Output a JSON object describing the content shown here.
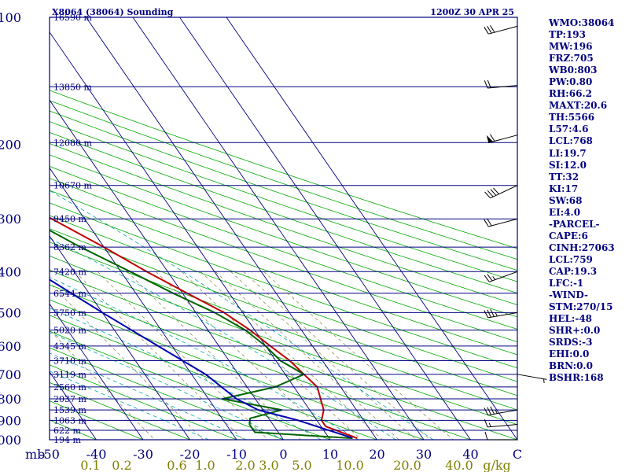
{
  "header": {
    "title": "X8064 (38064) Sounding",
    "time": "1200Z 30 APR 25"
  },
  "chart_data": {
    "type": "line",
    "subtype": "skew-t log-p",
    "pressure_axis": {
      "unit_label": "mb",
      "ticks": [
        100,
        200,
        300,
        400,
        500,
        600,
        700,
        800,
        900,
        1000
      ],
      "range": [
        100,
        1000
      ],
      "scale": "log"
    },
    "temperature_axis": {
      "ticks": [
        -50,
        -40,
        -30,
        -20,
        -10,
        0,
        10,
        20,
        30,
        40
      ],
      "end_label": "C",
      "range": [
        -50,
        50
      ]
    },
    "mixing_ratio_axis": {
      "labels": [
        "0.1",
        "0.2",
        "0.6",
        "1.0",
        "2.0",
        "3.0",
        "5.0",
        "10.0",
        "20.0",
        "40.0"
      ],
      "unit": "g/kg"
    },
    "height_labels": [
      {
        "p": 100,
        "label": "16590 m"
      },
      {
        "p": 146,
        "label": "13850 m"
      },
      {
        "p": 198,
        "label": "12080 m"
      },
      {
        "p": 250,
        "label": "10670 m"
      },
      {
        "p": 300,
        "label": "9450 m"
      },
      {
        "p": 350,
        "label": "8362 m"
      },
      {
        "p": 400,
        "label": "7420 m"
      },
      {
        "p": 450,
        "label": "6544 m"
      },
      {
        "p": 500,
        "label": "5750 m"
      },
      {
        "p": 550,
        "label": "5020 m"
      },
      {
        "p": 600,
        "label": "4345 m"
      },
      {
        "p": 650,
        "label": "3710 m"
      },
      {
        "p": 700,
        "label": "3119 m"
      },
      {
        "p": 750,
        "label": "2560 m"
      },
      {
        "p": 800,
        "label": "2037 m"
      },
      {
        "p": 850,
        "label": "1539 m"
      },
      {
        "p": 900,
        "label": "1063 m"
      },
      {
        "p": 950,
        "label": "622 m"
      },
      {
        "p": 1000,
        "label": "194 m"
      }
    ],
    "series": [
      {
        "data": [
          [
            992,
            16
          ],
          [
            930,
            11
          ],
          [
            900,
            11
          ],
          [
            850,
            13
          ],
          [
            750,
            15
          ],
          [
            700,
            14
          ],
          [
            650,
            13
          ],
          [
            600,
            11
          ],
          [
            550,
            9
          ],
          [
            500,
            6
          ],
          [
            450,
            1
          ],
          [
            400,
            -4.5
          ],
          [
            350,
            -10
          ],
          [
            300,
            -17
          ],
          [
            250,
            -25
          ],
          [
            200,
            -35
          ],
          [
            190,
            -36
          ],
          [
            150,
            -35
          ],
          [
            140,
            -38
          ],
          [
            120,
            -42
          ],
          [
            110,
            -44
          ],
          [
            100,
            -46
          ]
        ],
        "color": "#c00000"
      },
      {
        "data": [
          [
            992,
            15
          ],
          [
            960,
            -5
          ],
          [
            920,
            -5
          ],
          [
            890,
            -4
          ],
          [
            850,
            4
          ],
          [
            800,
            -7
          ],
          [
            750,
            6
          ],
          [
            700,
            14
          ],
          [
            650,
            11
          ],
          [
            600,
            10
          ],
          [
            550,
            8
          ],
          [
            500,
            4
          ],
          [
            450,
            -2
          ],
          [
            400,
            -8
          ],
          [
            350,
            -15
          ],
          [
            300,
            -22
          ],
          [
            250,
            -31
          ],
          [
            200,
            -40
          ],
          [
            180,
            -40
          ],
          [
            150,
            -37
          ],
          [
            120,
            -38
          ],
          [
            100,
            -42
          ]
        ],
        "color": "#006400"
      },
      {
        "data": [
          [
            990,
            15
          ],
          [
            900,
            6
          ],
          [
            850,
            -1
          ],
          [
            800,
            -4
          ],
          [
            700,
            -7
          ],
          [
            600,
            -13
          ],
          [
            500,
            -20
          ],
          [
            400,
            -28
          ],
          [
            300,
            -38
          ],
          [
            200,
            -51
          ],
          [
            150,
            -60
          ],
          [
            100,
            -73
          ]
        ],
        "color": "#0000b0"
      }
    ],
    "wind_barbs": [
      {
        "p": 105,
        "dir": 255,
        "speed": 30
      },
      {
        "p": 145,
        "dir": 265,
        "speed": 20
      },
      {
        "p": 190,
        "dir": 255,
        "speed": 60
      },
      {
        "p": 250,
        "dir": 245,
        "speed": 40
      },
      {
        "p": 300,
        "dir": 255,
        "speed": 20
      },
      {
        "p": 400,
        "dir": 250,
        "speed": 25
      },
      {
        "p": 500,
        "dir": 260,
        "speed": 35
      },
      {
        "p": 700,
        "dir": 100,
        "speed": 5
      },
      {
        "p": 850,
        "dir": 260,
        "speed": 35
      },
      {
        "p": 920,
        "dir": 265,
        "speed": 15
      },
      {
        "p": 1000,
        "dir": 270,
        "speed": 10
      }
    ],
    "grid": true,
    "background_color": "#ffffff",
    "colors": {
      "isobar": "#000080",
      "isotherm": "#000080",
      "dry_adiabat": "#00aa00",
      "moist_adiabat": "#00aaaa",
      "mixing_ratio": "#808040",
      "axis_label": "#000080",
      "mixing_label": "#808000",
      "barb": "#000000"
    }
  },
  "stats": [
    "WMO:38064",
    "TP:193",
    "MW:196",
    "FRZ:705",
    "WB0:803",
    "PW:0.80",
    "RH:66.2",
    "MAXT:20.6",
    "TH:5566",
    "L57:4.6",
    "LCL:768",
    "LI:19.7",
    "SI:12.0",
    "TT:32",
    "KI:17",
    "SW:68",
    "EI:4.0",
    "-PARCEL-",
    "CAPE:6",
    "CINH:27063",
    "LCL:759",
    "CAP:19.3",
    "LFC:-1",
    "-WIND-",
    "STM:270/15",
    "HEL:-48",
    "SHR+:0.0",
    "SRDS:-3",
    "EHI:0.0",
    "BRN:0.0",
    "BSHR:168"
  ]
}
